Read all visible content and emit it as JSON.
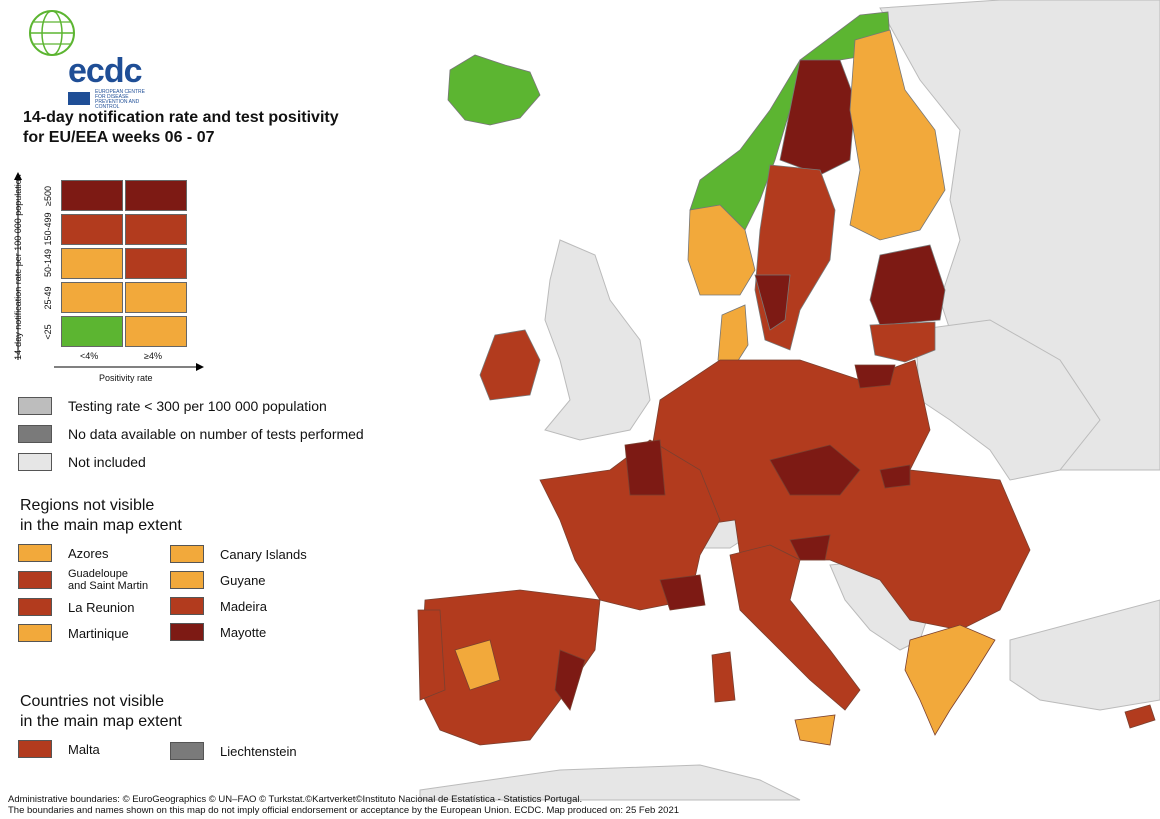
{
  "logo": {
    "wordmark": "ecdc",
    "subtitle": "European Centre for Disease Prevention and Control"
  },
  "title": {
    "line1": "14-day notification rate and test positivity",
    "line2": "for EU/EEA weeks 06 - 07"
  },
  "matrix": {
    "y_label": "14-day notification rate per 100 000 population",
    "y_ticks": [
      "≥500",
      "150-499",
      "50-149",
      "25-49",
      "<25"
    ],
    "x_label": "Positivity rate",
    "x_ticks": [
      "<4%",
      "≥4%"
    ],
    "colors": [
      [
        "#7d1a14",
        "#7d1a14"
      ],
      [
        "#b23b1e",
        "#b23b1e"
      ],
      [
        "#f2a93b",
        "#b23b1e"
      ],
      [
        "#f2a93b",
        "#f2a93b"
      ],
      [
        "#5cb531",
        "#f2a93b"
      ]
    ]
  },
  "legend": [
    {
      "label": "Testing rate < 300 per 100 000 population",
      "color": "#bdbdbd"
    },
    {
      "label": "No data available on number of tests performed",
      "color": "#7a7a7a"
    },
    {
      "label": "Not included",
      "color": "#e6e6e6"
    }
  ],
  "regions_title": {
    "line1": "Regions not visible",
    "line2": "in the main map extent"
  },
  "regions": [
    {
      "label": "Azores",
      "color": "#f2a93b"
    },
    {
      "label": "Canary Islands",
      "color": "#f2a93b"
    },
    {
      "label": "Guadeloupe and Saint Martin",
      "label1": "Guadeloupe",
      "label2": "and Saint Martin",
      "color": "#b23b1e"
    },
    {
      "label": "Guyane",
      "color": "#f2a93b"
    },
    {
      "label": "La Reunion",
      "color": "#b23b1e"
    },
    {
      "label": "Madeira",
      "color": "#b23b1e"
    },
    {
      "label": "Martinique",
      "color": "#f2a93b"
    },
    {
      "label": "Mayotte",
      "color": "#7d1a14"
    }
  ],
  "countries_title": {
    "line1": "Countries not visible",
    "line2": "in the main map extent"
  },
  "countries": [
    {
      "label": "Malta",
      "color": "#b23b1e"
    },
    {
      "label": "Liechtenstein",
      "color": "#7a7a7a"
    }
  ],
  "footer": {
    "line1": "Administrative boundaries: © EuroGeographics © UN–FAO © Turkstat.©Kartverket©Instituto Nacional de Estatística - Statistics Portugal.",
    "line2": "The boundaries and names shown on this map do not imply official endorsement or acceptance by the European Union. ECDC. Map produced on: 25 Feb 2021"
  },
  "colors": {
    "not_included": "#e6e6e6",
    "green": "#5cb531",
    "orange": "#f2a93b",
    "red": "#b23b1e",
    "dark_red": "#7d1a14",
    "border": "#7a4030"
  }
}
